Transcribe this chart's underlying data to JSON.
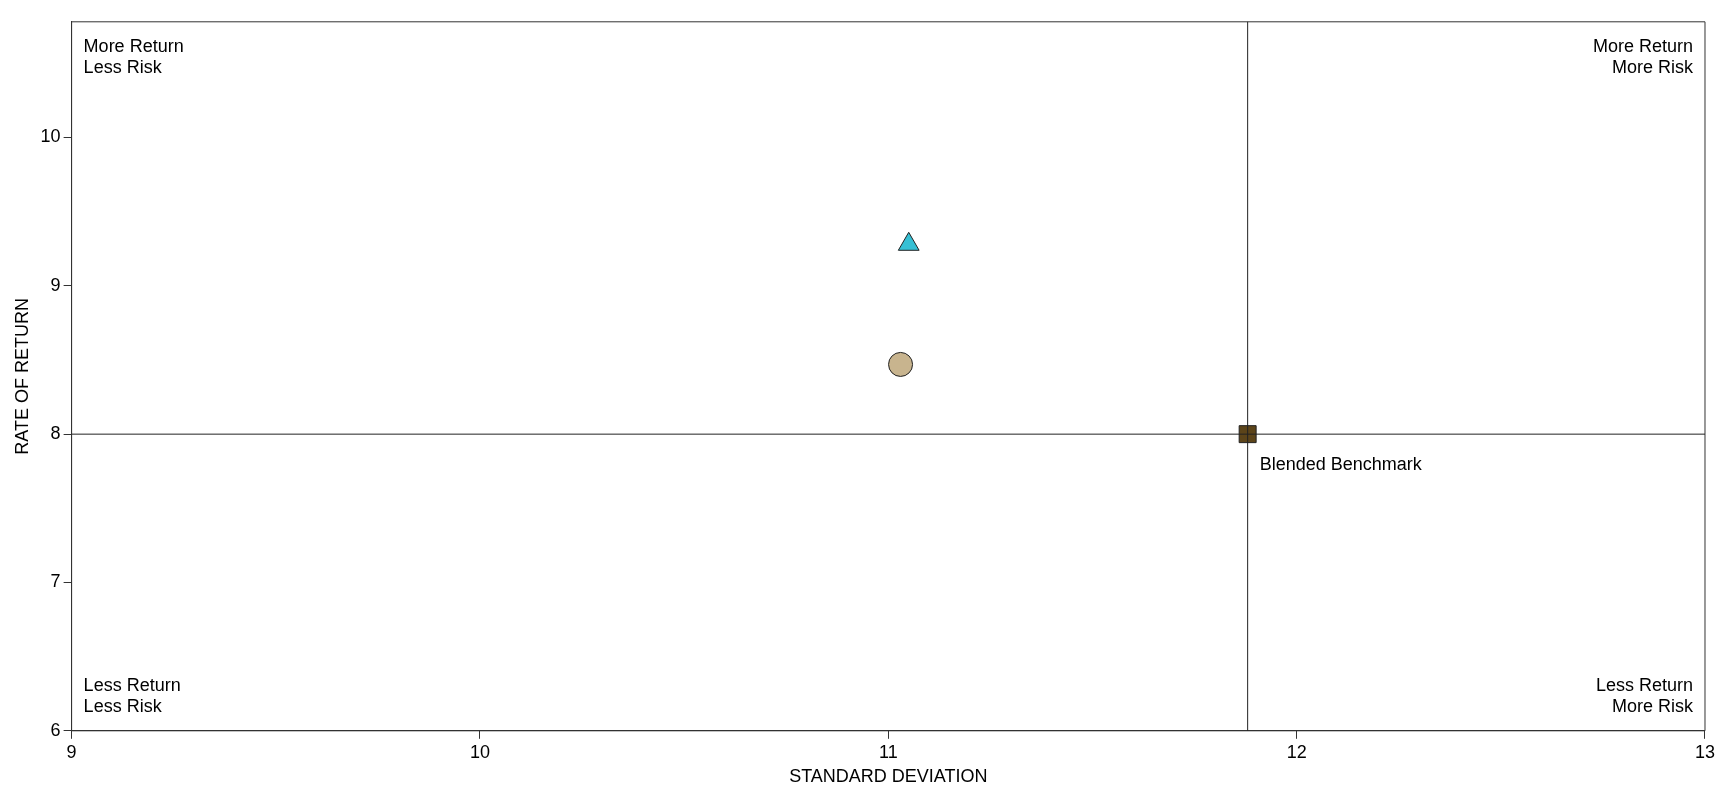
{
  "chart_data": {
    "type": "scatter",
    "xlabel": "STANDARD DEVIATION",
    "ylabel": "RATE OF RETURN",
    "xlim": [
      9,
      13
    ],
    "xticks": [
      9,
      10,
      11,
      12,
      13
    ],
    "ylim": [
      6,
      10.78
    ],
    "yticks": [
      6,
      7,
      8,
      9,
      10
    ],
    "grid": false,
    "legend": false,
    "series": [
      {
        "x": [
          11.05
        ],
        "values": [
          9.28
        ],
        "color": "#36c0d4",
        "marker": "triangle"
      },
      {
        "x": [
          11.03
        ],
        "values": [
          8.47
        ],
        "color": "#c8b48e",
        "marker": "circle"
      },
      {
        "name": "Blended Benchmark",
        "x": [
          11.88
        ],
        "values": [
          8.0
        ],
        "color": "#5c4419",
        "marker": "square"
      }
    ],
    "ref_lines": [
      {
        "axis": "x",
        "value": 11.88
      },
      {
        "axis": "y",
        "value": 8.0
      }
    ],
    "annotations": [
      "More Return\nLess Risk",
      "More Return\nMore Risk",
      "Less Return\nLess Risk",
      "Less Return\nMore Risk"
    ]
  }
}
